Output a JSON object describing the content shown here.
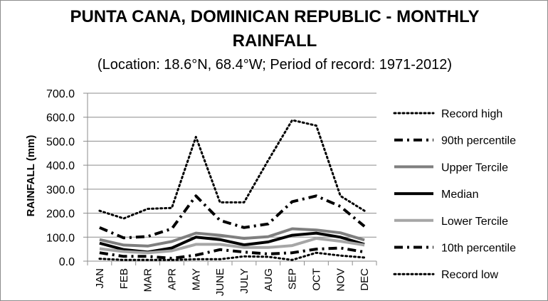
{
  "chart_data": {
    "type": "line",
    "title_line1": "PUNTA CANA, DOMINICAN REPUBLIC - MONTHLY",
    "title_line2": "RAINFALL",
    "subtitle": "(Location: 18.6°N, 68.4°W; Period of record: 1971-2012)",
    "xlabel": "",
    "ylabel": "RAINFALL (mm)",
    "ylim": [
      0,
      700
    ],
    "yticks": [
      "0.0",
      "100.0",
      "200.0",
      "300.0",
      "400.0",
      "500.0",
      "600.0",
      "700.0"
    ],
    "categories": [
      "JAN",
      "FEB",
      "MAR",
      "APR",
      "MAY",
      "JUNE",
      "JULY",
      "AUG",
      "SEP",
      "OCT",
      "NOV",
      "DEC"
    ],
    "grid": true,
    "legend_position": "right",
    "series": [
      {
        "name": "Record high",
        "style": "dotted",
        "color": "#000000",
        "width": 3,
        "values": [
          210,
          178,
          218,
          222,
          518,
          245,
          245,
          420,
          588,
          565,
          272,
          210
        ]
      },
      {
        "name": "90th percentile",
        "style": "dashdot",
        "color": "#000000",
        "width": 4,
        "values": [
          140,
          97,
          103,
          135,
          272,
          170,
          140,
          155,
          248,
          272,
          228,
          145
        ]
      },
      {
        "name": "Upper Tercile",
        "style": "solid",
        "color": "#7f7f7f",
        "width": 4,
        "values": [
          90,
          67,
          63,
          82,
          117,
          108,
          95,
          102,
          135,
          130,
          118,
          88
        ]
      },
      {
        "name": "Median",
        "style": "solid",
        "color": "#000000",
        "width": 4,
        "values": [
          75,
          48,
          38,
          55,
          100,
          90,
          68,
          80,
          108,
          117,
          100,
          70
        ]
      },
      {
        "name": "Lower Tercile",
        "style": "solid",
        "color": "#a6a6a6",
        "width": 4,
        "values": [
          52,
          40,
          35,
          43,
          70,
          70,
          57,
          57,
          65,
          95,
          83,
          67
        ]
      },
      {
        "name": "10th percentile",
        "style": "dashdot",
        "color": "#000000",
        "width": 4,
        "values": [
          35,
          20,
          20,
          12,
          25,
          48,
          38,
          30,
          35,
          50,
          55,
          38
        ]
      },
      {
        "name": "Record low",
        "style": "dotted",
        "color": "#000000",
        "width": 3,
        "values": [
          10,
          5,
          5,
          5,
          8,
          8,
          20,
          18,
          5,
          35,
          23,
          15
        ]
      }
    ]
  }
}
